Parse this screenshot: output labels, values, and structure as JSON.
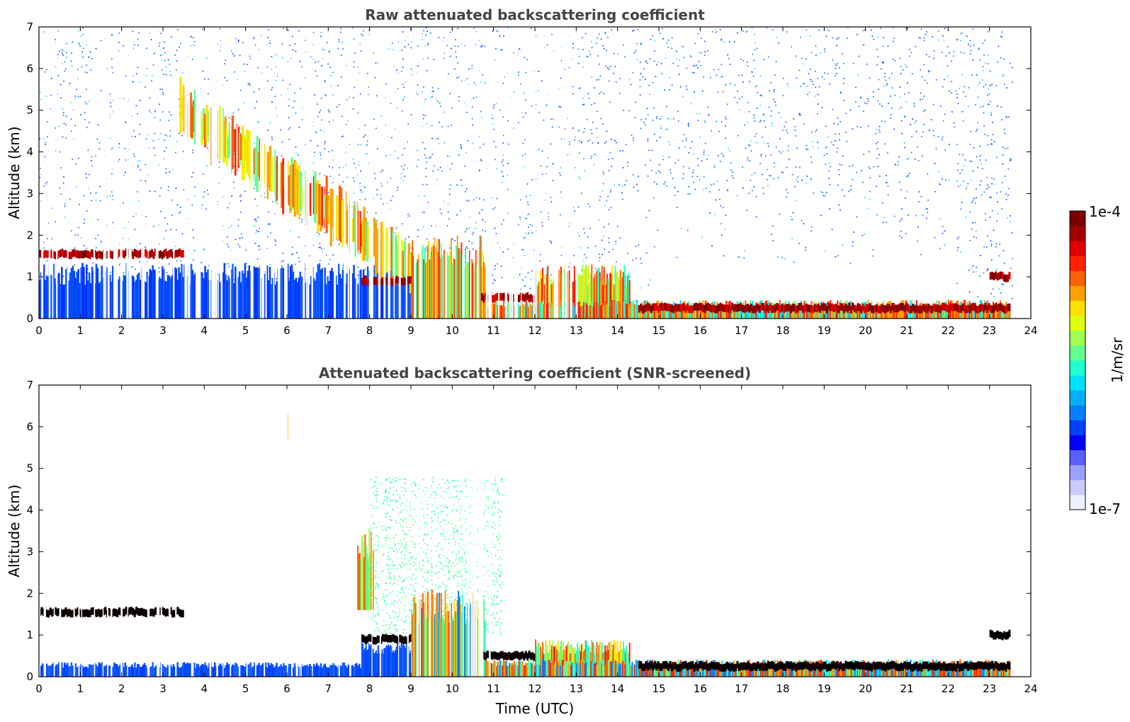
{
  "colorbar": {
    "max_label": "1e-4",
    "min_label": "1e-7",
    "unit_label": "1/m/sr",
    "colors": [
      "#eef0ff",
      "#c8ccff",
      "#9aa0ff",
      "#5a60ff",
      "#0000ff",
      "#0040ff",
      "#0080ff",
      "#00b0ff",
      "#00e0ff",
      "#20ffd0",
      "#60ff90",
      "#a0ff50",
      "#e0ff10",
      "#ffe000",
      "#ffa000",
      "#ff6000",
      "#ff2000",
      "#e00000",
      "#a00000",
      "#7a0000"
    ]
  },
  "chart_data": [
    {
      "type": "heatmap",
      "title": "Raw attenuated backscattering coefficient",
      "xlabel": "",
      "ylabel": "Altitude (km)",
      "xlim": [
        0,
        24
      ],
      "ylim": [
        0,
        7
      ],
      "xticks": [
        "0",
        "1",
        "2",
        "3",
        "4",
        "5",
        "6",
        "7",
        "8",
        "9",
        "10",
        "11",
        "12",
        "13",
        "14",
        "15",
        "16",
        "17",
        "18",
        "19",
        "20",
        "21",
        "22",
        "23",
        "24"
      ],
      "yticks": [
        "0",
        "1",
        "2",
        "3",
        "4",
        "5",
        "6",
        "7"
      ],
      "cloud_layers": [
        {
          "t_start": 0,
          "t_end": 3.5,
          "alt_km": 1.55
        },
        {
          "t_start": 7.8,
          "t_end": 9.0,
          "alt_km": 0.9
        },
        {
          "t_start": 10.7,
          "t_end": 12.0,
          "alt_km": 0.5
        },
        {
          "t_start": 14.5,
          "t_end": 23.5,
          "alt_km": 0.25
        },
        {
          "t_start": 23.0,
          "t_end": 23.5,
          "alt_km": 1.0
        }
      ],
      "descending_layer": {
        "t_start": 3.4,
        "alt_start_km": 5.0,
        "t_end": 9.0,
        "alt_end_km": 1.2
      }
    },
    {
      "type": "heatmap",
      "title": "Attenuated backscattering coefficient (SNR-screened)",
      "xlabel": "Time (UTC)",
      "ylabel": "Altitude (km)",
      "xlim": [
        0,
        24
      ],
      "ylim": [
        0,
        7
      ],
      "xticks": [
        "0",
        "1",
        "2",
        "3",
        "4",
        "5",
        "6",
        "7",
        "8",
        "9",
        "10",
        "11",
        "12",
        "13",
        "14",
        "15",
        "16",
        "17",
        "18",
        "19",
        "20",
        "21",
        "22",
        "23",
        "24"
      ],
      "yticks": [
        "0",
        "1",
        "2",
        "3",
        "4",
        "5",
        "6",
        "7"
      ],
      "cloud_layers": [
        {
          "t_start": 0,
          "t_end": 3.5,
          "alt_km": 1.55
        },
        {
          "t_start": 7.8,
          "t_end": 9.0,
          "alt_km": 0.9
        },
        {
          "t_start": 10.7,
          "t_end": 12.0,
          "alt_km": 0.5
        },
        {
          "t_start": 14.5,
          "t_end": 23.5,
          "alt_km": 0.25
        },
        {
          "t_start": 23.0,
          "t_end": 23.5,
          "alt_km": 1.0
        }
      ]
    }
  ]
}
